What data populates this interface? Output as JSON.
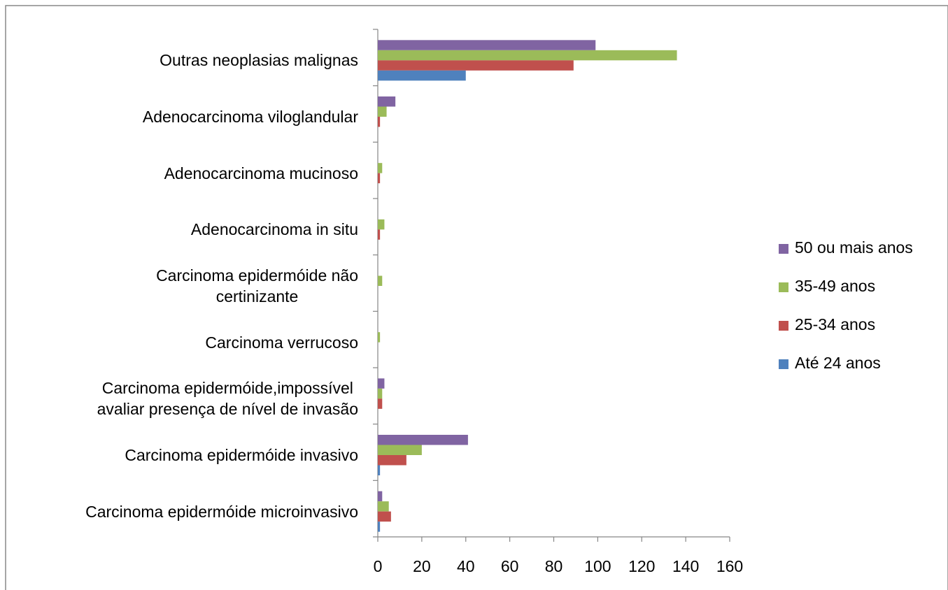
{
  "chart_data": {
    "type": "hbar",
    "categories": [
      "Outras neoplasias malignas",
      "Adenocarcinoma viloglandular",
      "Adenocarcinoma mucinoso",
      "Adenocarcinoma in situ",
      "Carcinoma epidermóide não\ncertinizante",
      "Carcinoma verrucoso",
      "Carcinoma epidermóide,impossível\navaliar presença de nível de invasão",
      "Carcinoma epidermóide invasivo",
      "Carcinoma epidermóide microinvasivo"
    ],
    "series": [
      {
        "name": "50 ou mais anos",
        "color": "#8064a2",
        "values": [
          99,
          8,
          0,
          0,
          0,
          0,
          3,
          41,
          2
        ]
      },
      {
        "name": "35-49 anos",
        "color": "#9bbb59",
        "values": [
          136,
          4,
          2,
          3,
          2,
          1,
          2,
          20,
          5
        ]
      },
      {
        "name": "25-34 anos",
        "color": "#c0504d",
        "values": [
          89,
          1,
          1,
          1,
          0,
          0,
          2,
          13,
          6
        ]
      },
      {
        "name": "Até 24 anos",
        "color": "#4f81bd",
        "values": [
          40,
          0,
          0,
          0,
          0,
          0,
          0,
          1,
          1
        ]
      }
    ],
    "xlim": [
      0,
      160
    ],
    "xticks": [
      0,
      20,
      40,
      60,
      80,
      100,
      120,
      140,
      160
    ],
    "legend": "right"
  }
}
